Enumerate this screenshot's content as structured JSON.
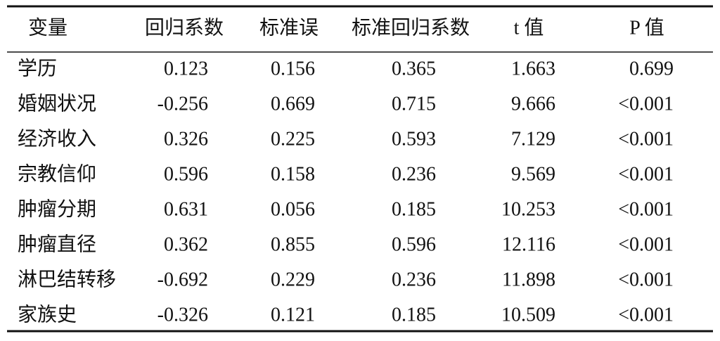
{
  "table": {
    "headers": [
      "变量",
      "回归系数",
      "标准误",
      "标准回归系数",
      "t 值",
      "P 值"
    ],
    "rows": [
      [
        "学历",
        "0.123",
        "0.156",
        "0.365",
        "1.663",
        "0.699"
      ],
      [
        "婚姻状况",
        "-0.256",
        "0.669",
        "0.715",
        "9.666",
        "<0.001"
      ],
      [
        "经济收入",
        "0.326",
        "0.225",
        "0.593",
        "7.129",
        "<0.001"
      ],
      [
        "宗教信仰",
        "0.596",
        "0.158",
        "0.236",
        "9.569",
        "<0.001"
      ],
      [
        "肿瘤分期",
        "0.631",
        "0.056",
        "0.185",
        "10.253",
        "<0.001"
      ],
      [
        "肿瘤直径",
        "0.362",
        "0.855",
        "0.596",
        "12.116",
        "<0.001"
      ],
      [
        "淋巴结转移",
        "-0.692",
        "0.229",
        "0.236",
        "11.898",
        "<0.001"
      ],
      [
        "家族史",
        "-0.326",
        "0.121",
        "0.185",
        "10.509",
        "<0.001"
      ]
    ]
  }
}
